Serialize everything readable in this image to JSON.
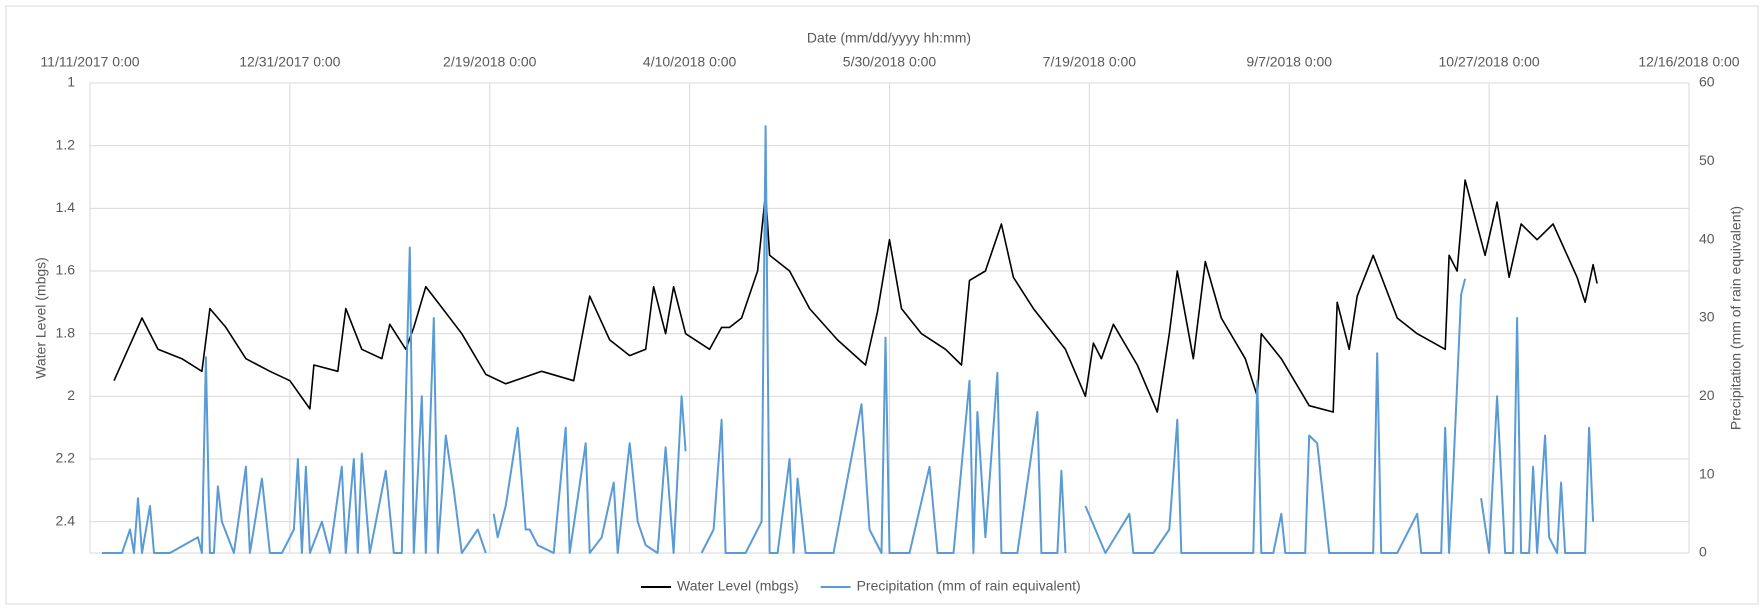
{
  "chart_data": {
    "type": "line",
    "xlabel": "Date (mm/dd/yyyy hh:mm)",
    "ylabel": "Water Level (mbgs)",
    "y2label": "Precipitation (mm of rain equivalent)",
    "x_axis_position": "top",
    "y_reversed": true,
    "grid": true,
    "legend": "bottom",
    "xlim": [
      43050,
      43450
    ],
    "xticks": [
      {
        "value": 43050,
        "label": "11/11/2017 0:00"
      },
      {
        "value": 43100,
        "label": "12/31/2017 0:00"
      },
      {
        "value": 43150,
        "label": "2/19/2018 0:00"
      },
      {
        "value": 43200,
        "label": "4/10/2018 0:00"
      },
      {
        "value": 43250,
        "label": "5/30/2018 0:00"
      },
      {
        "value": 43300,
        "label": "7/19/2018 0:00"
      },
      {
        "value": 43350,
        "label": "9/7/2018 0:00"
      },
      {
        "value": 43400,
        "label": "10/27/2018 0:00"
      },
      {
        "value": 43450,
        "label": "12/16/2018 0:00"
      }
    ],
    "ylim": [
      1,
      2.5
    ],
    "yticks": [
      1,
      1.2,
      1.4,
      1.6,
      1.8,
      2,
      2.2,
      2.4
    ],
    "y2lim": [
      0,
      60
    ],
    "y2ticks": [
      0,
      10,
      20,
      30,
      40,
      50,
      60
    ],
    "series": [
      {
        "name": "Water Level (mbgs)",
        "color": "#000000",
        "x": [
          43056,
          43063,
          43067,
          43073,
          43078,
          43080,
          43084,
          43089,
          43095,
          43100,
          43105,
          43106,
          43112,
          43114,
          43118,
          43123,
          43125,
          43129,
          43131,
          43134,
          43137,
          43143,
          43149,
          43154,
          43163,
          43171,
          43175,
          43180,
          43185,
          43189,
          43191,
          43194,
          43196,
          43199,
          43205,
          43208,
          43210,
          43213,
          43217,
          43219,
          43220,
          43225,
          43230,
          43237,
          43244,
          43247,
          43250,
          43253,
          43258,
          43264,
          43268,
          43270,
          43274,
          43278,
          43281,
          43286,
          43294,
          43299,
          43301,
          43303,
          43306,
          43312,
          43317,
          43320,
          43322,
          43326,
          43329,
          43333,
          43339,
          43342,
          43343,
          43348,
          43355,
          43361,
          43362,
          43365,
          43367,
          43371,
          43377,
          43382,
          43389,
          43390,
          43392,
          43394,
          43399,
          43402,
          43405,
          43408,
          43412,
          43416,
          43422,
          43424,
          43426,
          43427
        ],
        "values": [
          1.95,
          1.75,
          1.85,
          1.88,
          1.92,
          1.72,
          1.78,
          1.88,
          1.92,
          1.95,
          2.04,
          1.9,
          1.92,
          1.72,
          1.85,
          1.88,
          1.77,
          1.85,
          1.78,
          1.65,
          1.7,
          1.8,
          1.93,
          1.96,
          1.92,
          1.95,
          1.68,
          1.82,
          1.87,
          1.85,
          1.65,
          1.8,
          1.65,
          1.8,
          1.85,
          1.78,
          1.78,
          1.75,
          1.6,
          1.35,
          1.55,
          1.6,
          1.72,
          1.82,
          1.9,
          1.73,
          1.5,
          1.72,
          1.8,
          1.85,
          1.9,
          1.63,
          1.6,
          1.45,
          1.62,
          1.72,
          1.85,
          2.0,
          1.83,
          1.88,
          1.77,
          1.9,
          2.05,
          1.8,
          1.6,
          1.88,
          1.57,
          1.75,
          1.88,
          2.0,
          1.8,
          1.88,
          2.03,
          2.05,
          1.7,
          1.85,
          1.68,
          1.55,
          1.75,
          1.8,
          1.85,
          1.55,
          1.6,
          1.31,
          1.55,
          1.38,
          1.62,
          1.45,
          1.5,
          1.45,
          1.62,
          1.7,
          1.58,
          1.64
        ]
      },
      {
        "name": "Precipitation (mm of rain equivalent)",
        "color": "#5b9bd5",
        "axis": "y2",
        "x": [
          43053,
          43058,
          43060,
          43061,
          43062,
          43063,
          43065,
          43066,
          43070,
          43077,
          43078,
          43079,
          43080,
          43081,
          43082,
          43083,
          43086,
          43089,
          43090,
          43093,
          43095,
          43098,
          43101,
          43102,
          43103,
          43104,
          43105,
          43108,
          43110,
          43113,
          43114,
          43116,
          43117,
          43118,
          43120,
          43124,
          43126,
          43128,
          43130,
          43131,
          43133,
          43134,
          43136,
          43137,
          43139,
          43141,
          43143,
          43147,
          43149,
          43150,
          43151,
          43152,
          43154,
          43157,
          43159,
          43160,
          43162,
          43166,
          43169,
          43170,
          43174,
          43175,
          43178,
          43181,
          43182,
          43185,
          43187,
          43189,
          43192,
          43194,
          43196,
          43198,
          43199,
          43200,
          43203,
          43206,
          43208,
          43209,
          43214,
          43218,
          43219,
          43220,
          43222,
          43225,
          43226,
          43227,
          43229,
          43236,
          43243,
          43245,
          43248,
          43249,
          43250,
          43255,
          43260,
          43262,
          43266,
          43270,
          43271,
          43272,
          43274,
          43277,
          43278,
          43282,
          43287,
          43288,
          43292,
          43293,
          43294,
          43296,
          43299,
          43304,
          43310,
          43311,
          43316,
          43320,
          43322,
          43323,
          43335,
          43341,
          43342,
          43343,
          43346,
          43348,
          43349,
          43354,
          43355,
          43357,
          43360,
          43371,
          43372,
          43373,
          43377,
          43380,
          43382,
          43383,
          43388,
          43389,
          43390,
          43391,
          43393,
          43394,
          43396,
          43398,
          43400,
          43402,
          43404,
          43406,
          43407,
          43408,
          43410,
          43411,
          43412,
          43414,
          43415,
          43417,
          43418,
          43419,
          43424,
          43425,
          43426
        ],
        "values": [
          0,
          0,
          3,
          0,
          7,
          0,
          6,
          0,
          0,
          2,
          0,
          25,
          0,
          0,
          8.5,
          4,
          0,
          11,
          0,
          9.5,
          0,
          0,
          3,
          12,
          0,
          11,
          0,
          4,
          0,
          11,
          0,
          12,
          0,
          12.7,
          0,
          10.5,
          0,
          0,
          39,
          0,
          20,
          0,
          30,
          0,
          15,
          8,
          0,
          3,
          0,
          null,
          5,
          2,
          6,
          16,
          3,
          3,
          1,
          0,
          16,
          0,
          14,
          0,
          2,
          9,
          0,
          14,
          4,
          1,
          0,
          13.5,
          0,
          20,
          13,
          null,
          0,
          3,
          17,
          0,
          0,
          4,
          54.5,
          0,
          0,
          12,
          0,
          9.5,
          0,
          0,
          19,
          3,
          0,
          27.5,
          0,
          0,
          11,
          0,
          0,
          22,
          0,
          18,
          2,
          23,
          0,
          0,
          18,
          0,
          0,
          10.5,
          0,
          null,
          6,
          0,
          5,
          0,
          0,
          3,
          17,
          0,
          0,
          0,
          22,
          0,
          0,
          5,
          0,
          0,
          15,
          14,
          0,
          0,
          25.5,
          0,
          0,
          3,
          5,
          0,
          0,
          16,
          0,
          10,
          33,
          35,
          null,
          7,
          0,
          20,
          0,
          0,
          30,
          0,
          0,
          11,
          0,
          15,
          2,
          0,
          9,
          0,
          0,
          16,
          4
        ]
      }
    ]
  }
}
